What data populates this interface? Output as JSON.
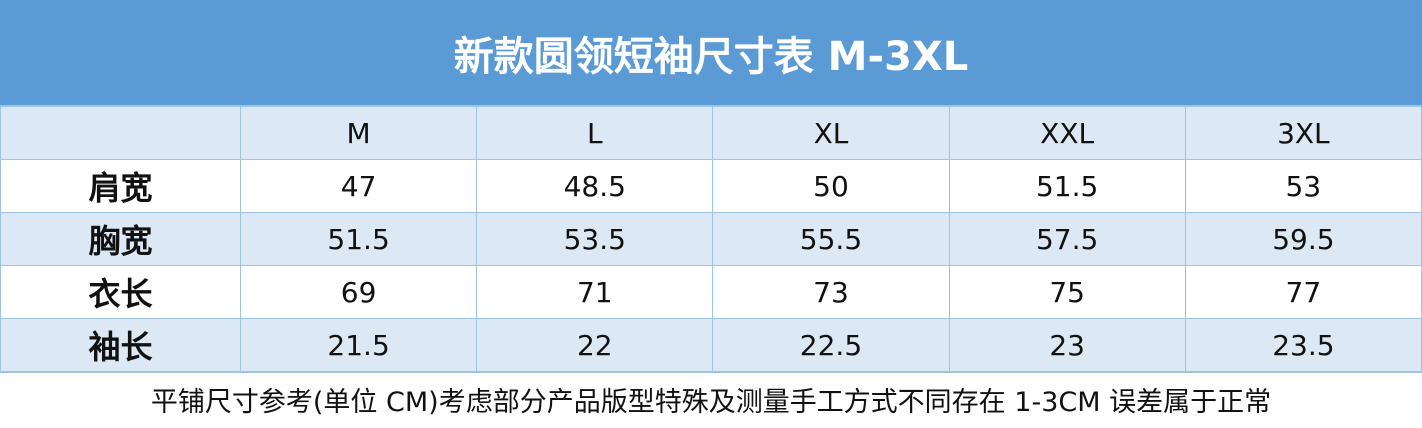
{
  "title": "新款圆领短袖尺寸表 M-3XL",
  "header": {
    "corner": "",
    "sizes": [
      "M",
      "L",
      "XL",
      "XXL",
      "3XL"
    ]
  },
  "rows": [
    {
      "label": "肩宽",
      "values": [
        "47",
        "48.5",
        "50",
        "51.5",
        "53"
      ]
    },
    {
      "label": "胸宽",
      "values": [
        "51.5",
        "53.5",
        "55.5",
        "57.5",
        "59.5"
      ]
    },
    {
      "label": "衣长",
      "values": [
        "69",
        "71",
        "73",
        "75",
        "77"
      ]
    },
    {
      "label": "袖长",
      "values": [
        "21.5",
        "22",
        "22.5",
        "23",
        "23.5"
      ]
    }
  ],
  "footnote": "平铺尺寸参考(单位 CM)考虑部分产品版型特殊及测量手工方式不同存在 1-3CM 误差属于正常",
  "colors": {
    "title_bg": "#5b9bd5",
    "alt_row": "#dde8f5",
    "grid": "#9dc3e6"
  }
}
